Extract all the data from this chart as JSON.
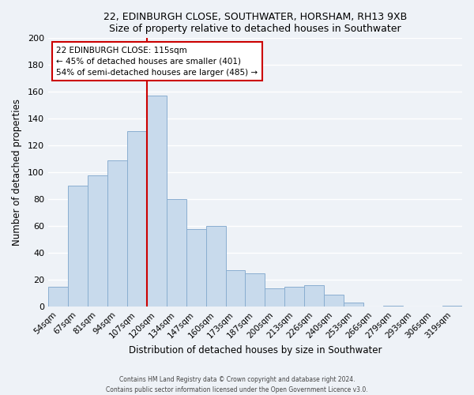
{
  "title": "22, EDINBURGH CLOSE, SOUTHWATER, HORSHAM, RH13 9XB",
  "subtitle": "Size of property relative to detached houses in Southwater",
  "xlabel": "Distribution of detached houses by size in Southwater",
  "ylabel": "Number of detached properties",
  "bar_color": "#c8daec",
  "bar_edge_color": "#8aaed0",
  "categories": [
    "54sqm",
    "67sqm",
    "81sqm",
    "94sqm",
    "107sqm",
    "120sqm",
    "134sqm",
    "147sqm",
    "160sqm",
    "173sqm",
    "187sqm",
    "200sqm",
    "213sqm",
    "226sqm",
    "240sqm",
    "253sqm",
    "266sqm",
    "279sqm",
    "293sqm",
    "306sqm",
    "319sqm"
  ],
  "values": [
    15,
    90,
    98,
    109,
    131,
    157,
    80,
    58,
    60,
    27,
    25,
    14,
    15,
    16,
    9,
    3,
    0,
    1,
    0,
    0,
    1
  ],
  "vline_x": 4.5,
  "vline_color": "#cc0000",
  "annotation_title": "22 EDINBURGH CLOSE: 115sqm",
  "annotation_line1": "← 45% of detached houses are smaller (401)",
  "annotation_line2": "54% of semi-detached houses are larger (485) →",
  "annotation_box_color": "#ffffff",
  "annotation_box_edge_color": "#cc0000",
  "ylim": [
    0,
    200
  ],
  "yticks": [
    0,
    20,
    40,
    60,
    80,
    100,
    120,
    140,
    160,
    180,
    200
  ],
  "footnote1": "Contains HM Land Registry data © Crown copyright and database right 2024.",
  "footnote2": "Contains public sector information licensed under the Open Government Licence v3.0.",
  "bg_color": "#eef2f7",
  "grid_color": "#ffffff"
}
